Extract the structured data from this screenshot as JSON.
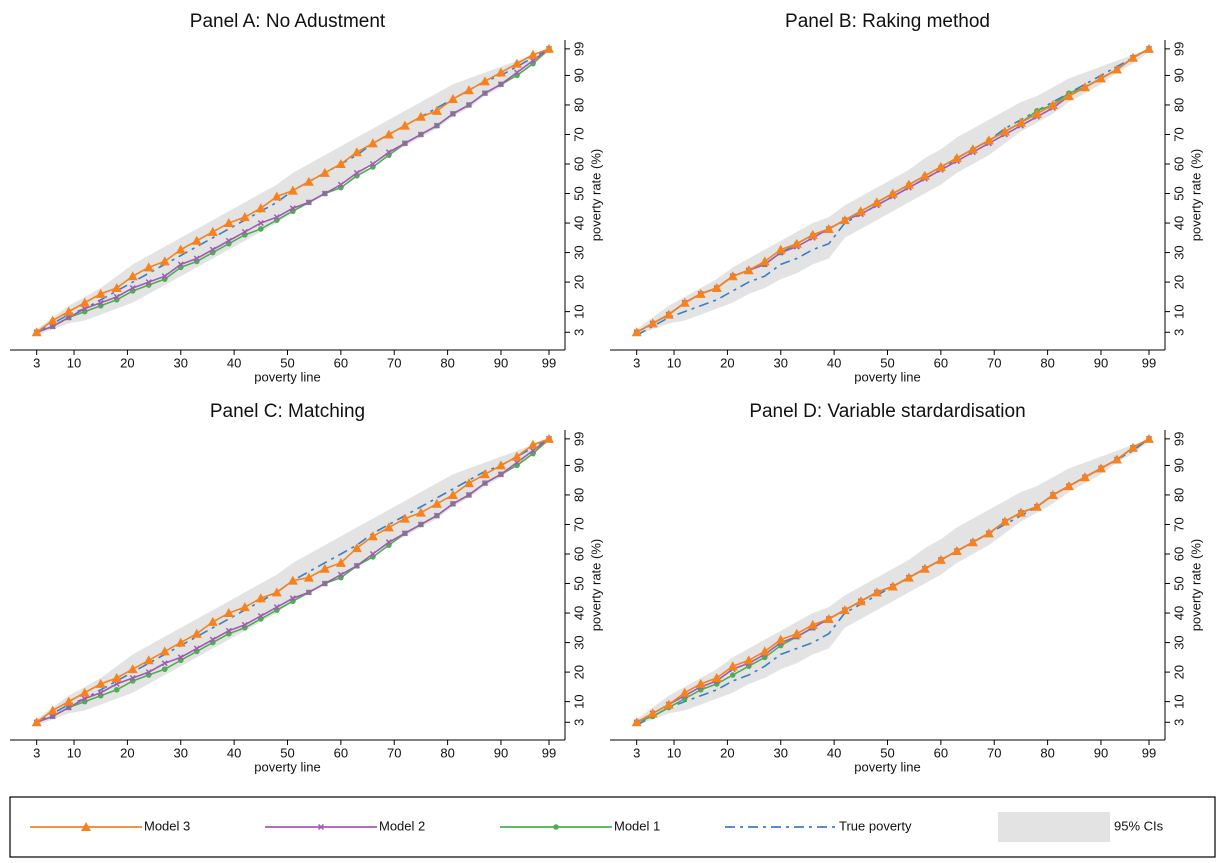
{
  "chart_data": [
    {
      "type": "line",
      "title": "Panel A: No Adustment",
      "xlabel": "poverty line",
      "ylabel": "poverty rate (%)",
      "x": [
        3,
        6,
        9,
        12,
        15,
        18,
        21,
        24,
        27,
        30,
        33,
        36,
        39,
        42,
        45,
        48,
        51,
        54,
        57,
        60,
        63,
        66,
        69,
        72,
        75,
        78,
        81,
        84,
        87,
        90,
        93,
        96,
        99
      ],
      "xlim": [
        -2,
        102
      ],
      "ylim": [
        -3,
        102
      ],
      "xticks": [
        3,
        10,
        20,
        30,
        40,
        50,
        60,
        70,
        80,
        90,
        99
      ],
      "yticks": [
        3,
        10,
        20,
        30,
        40,
        50,
        60,
        70,
        80,
        90,
        99
      ],
      "series": [
        {
          "name": "Model 3",
          "color": "#f5821f",
          "marker": "triangle",
          "values": [
            3,
            7,
            10,
            13,
            16,
            18,
            22,
            25,
            27,
            31,
            34,
            37,
            40,
            42,
            45,
            49,
            51,
            54,
            57,
            60,
            64,
            67,
            70,
            73,
            76,
            78,
            82,
            85,
            88,
            91,
            94,
            97,
            99
          ]
        },
        {
          "name": "Model 2",
          "color": "#a05bb5",
          "marker": "cross",
          "values": [
            3,
            5,
            8,
            11,
            13,
            15,
            18,
            20,
            22,
            26,
            28,
            31,
            34,
            37,
            40,
            42,
            45,
            47,
            50,
            53,
            57,
            60,
            64,
            67,
            70,
            73,
            77,
            80,
            84,
            87,
            91,
            95,
            99
          ]
        },
        {
          "name": "Model 1",
          "color": "#4caf50",
          "marker": "circle",
          "values": [
            3,
            5,
            8,
            10,
            12,
            14,
            17,
            19,
            21,
            25,
            27,
            30,
            33,
            36,
            38,
            41,
            44,
            47,
            50,
            52,
            56,
            59,
            63,
            67,
            70,
            73,
            77,
            80,
            84,
            87,
            90,
            94,
            99
          ]
        },
        {
          "name": "True poverty",
          "color": "#3a7ec6",
          "linestyle": "dashdot",
          "values": [
            3,
            6,
            9,
            11,
            14,
            17,
            20,
            23,
            26,
            29,
            32,
            35,
            38,
            41,
            44,
            47,
            51,
            54,
            57,
            60,
            63,
            67,
            70,
            73,
            76,
            79,
            82,
            85,
            88,
            90,
            93,
            96,
            99
          ]
        }
      ],
      "ci": {
        "name": "95% CIs",
        "color": "#e3e3e3",
        "lower": [
          2,
          4,
          6,
          7,
          9,
          11,
          13,
          16,
          19,
          22,
          25,
          28,
          31,
          34,
          37,
          40,
          44,
          47,
          50,
          53,
          56,
          60,
          63,
          66,
          69,
          72,
          76,
          79,
          83,
          86,
          90,
          94,
          98
        ],
        "upper": [
          4,
          8,
          12,
          15,
          18,
          22,
          26,
          29,
          32,
          35,
          38,
          41,
          44,
          47,
          50,
          53,
          57,
          60,
          63,
          66,
          69,
          72,
          75,
          78,
          81,
          84,
          87,
          89,
          91,
          93,
          95,
          97,
          99
        ]
      }
    },
    {
      "type": "line",
      "title": "Panel B: Raking method",
      "xlabel": "poverty line",
      "ylabel": "poverty rate (%)",
      "x": [
        3,
        6,
        9,
        12,
        15,
        18,
        21,
        24,
        27,
        30,
        33,
        36,
        39,
        42,
        45,
        48,
        51,
        54,
        57,
        60,
        63,
        66,
        69,
        72,
        75,
        78,
        81,
        84,
        87,
        90,
        93,
        96,
        99
      ],
      "xlim": [
        -2,
        102
      ],
      "ylim": [
        -3,
        102
      ],
      "xticks": [
        3,
        10,
        20,
        30,
        40,
        50,
        60,
        70,
        80,
        90,
        99
      ],
      "yticks": [
        3,
        10,
        20,
        30,
        40,
        50,
        60,
        70,
        80,
        90,
        99
      ],
      "series": [
        {
          "name": "Model 3",
          "color": "#f5821f",
          "marker": "triangle",
          "values": [
            3,
            6,
            9,
            13,
            16,
            18,
            22,
            24,
            27,
            31,
            33,
            36,
            38,
            41,
            44,
            47,
            50,
            53,
            56,
            59,
            62,
            65,
            68,
            71,
            74,
            77,
            80,
            83,
            86,
            89,
            92,
            96,
            99
          ]
        },
        {
          "name": "Model 2",
          "color": "#a05bb5",
          "marker": "cross",
          "values": [
            3,
            6,
            9,
            13,
            16,
            18,
            22,
            24,
            26,
            30,
            32,
            35,
            38,
            41,
            43,
            46,
            49,
            52,
            55,
            58,
            61,
            64,
            67,
            70,
            73,
            76,
            79,
            83,
            86,
            89,
            92,
            96,
            99
          ]
        },
        {
          "name": "Model 1",
          "color": "#4caf50",
          "marker": "circle",
          "values": [
            3,
            6,
            9,
            13,
            16,
            18,
            22,
            24,
            26,
            30,
            33,
            36,
            38,
            41,
            44,
            47,
            50,
            53,
            56,
            59,
            62,
            65,
            68,
            71,
            74,
            78,
            80,
            84,
            86,
            89,
            92,
            96,
            99
          ]
        },
        {
          "name": "True poverty",
          "color": "#3a7ec6",
          "linestyle": "dashdot",
          "values": [
            2,
            5,
            8,
            10,
            12,
            14,
            17,
            20,
            22,
            26,
            28,
            31,
            33,
            40,
            43,
            46,
            49,
            52,
            55,
            58,
            62,
            65,
            68,
            72,
            75,
            78,
            81,
            84,
            87,
            90,
            93,
            96,
            99
          ]
        }
      ],
      "ci": {
        "name": "95% CIs",
        "color": "#e3e3e3",
        "lower": [
          2,
          4,
          6,
          7,
          9,
          11,
          13,
          16,
          18,
          21,
          23,
          26,
          28,
          35,
          38,
          41,
          44,
          47,
          50,
          53,
          57,
          60,
          63,
          67,
          71,
          74,
          77,
          81,
          84,
          87,
          91,
          94,
          98
        ],
        "upper": [
          4,
          8,
          12,
          15,
          18,
          21,
          25,
          28,
          31,
          34,
          37,
          40,
          42,
          46,
          49,
          52,
          55,
          58,
          62,
          65,
          69,
          72,
          75,
          78,
          81,
          83,
          86,
          89,
          91,
          93,
          95,
          97,
          99
        ]
      }
    },
    {
      "type": "line",
      "title": "Panel C: Matching",
      "xlabel": "poverty line",
      "ylabel": "poverty rate (%)",
      "x": [
        3,
        6,
        9,
        12,
        15,
        18,
        21,
        24,
        27,
        30,
        33,
        36,
        39,
        42,
        45,
        48,
        51,
        54,
        57,
        60,
        63,
        66,
        69,
        72,
        75,
        78,
        81,
        84,
        87,
        90,
        93,
        96,
        99
      ],
      "xlim": [
        -2,
        102
      ],
      "ylim": [
        -3,
        102
      ],
      "xticks": [
        3,
        10,
        20,
        30,
        40,
        50,
        60,
        70,
        80,
        90,
        99
      ],
      "yticks": [
        3,
        10,
        20,
        30,
        40,
        50,
        60,
        70,
        80,
        90,
        99
      ],
      "series": [
        {
          "name": "Model 3",
          "color": "#f5821f",
          "marker": "triangle",
          "values": [
            3,
            7,
            10,
            13,
            16,
            18,
            21,
            24,
            27,
            30,
            33,
            37,
            40,
            42,
            45,
            47,
            51,
            52,
            55,
            57,
            62,
            66,
            69,
            72,
            74,
            77,
            80,
            84,
            87,
            90,
            93,
            97,
            99
          ]
        },
        {
          "name": "Model 2",
          "color": "#a05bb5",
          "marker": "cross",
          "values": [
            3,
            5,
            8,
            11,
            13,
            16,
            18,
            20,
            23,
            25,
            28,
            31,
            34,
            36,
            39,
            42,
            45,
            47,
            50,
            53,
            56,
            60,
            64,
            67,
            70,
            73,
            77,
            80,
            84,
            87,
            91,
            95,
            99
          ]
        },
        {
          "name": "Model 1",
          "color": "#4caf50",
          "marker": "circle",
          "values": [
            3,
            5,
            8,
            10,
            12,
            14,
            17,
            19,
            21,
            24,
            27,
            30,
            33,
            35,
            38,
            41,
            44,
            47,
            50,
            52,
            56,
            59,
            63,
            67,
            70,
            73,
            77,
            80,
            84,
            87,
            90,
            94,
            99
          ]
        },
        {
          "name": "True poverty",
          "color": "#3a7ec6",
          "linestyle": "dashdot",
          "values": [
            3,
            6,
            9,
            11,
            14,
            17,
            20,
            23,
            26,
            29,
            32,
            35,
            38,
            41,
            44,
            47,
            51,
            54,
            57,
            60,
            63,
            67,
            70,
            73,
            76,
            79,
            82,
            85,
            88,
            90,
            93,
            96,
            99
          ]
        }
      ],
      "ci": {
        "name": "95% CIs",
        "color": "#e3e3e3",
        "lower": [
          2,
          4,
          6,
          7,
          9,
          11,
          13,
          16,
          19,
          22,
          25,
          28,
          31,
          34,
          37,
          40,
          44,
          47,
          50,
          53,
          56,
          60,
          63,
          66,
          69,
          72,
          76,
          79,
          83,
          86,
          90,
          94,
          98
        ],
        "upper": [
          4,
          8,
          12,
          15,
          18,
          22,
          26,
          29,
          32,
          35,
          38,
          41,
          44,
          47,
          50,
          53,
          57,
          60,
          63,
          66,
          69,
          72,
          75,
          78,
          81,
          84,
          87,
          89,
          91,
          93,
          95,
          97,
          99
        ]
      }
    },
    {
      "type": "line",
      "title": "Panel D: Variable stardardisation",
      "xlabel": "poverty line",
      "ylabel": "poverty rate (%)",
      "x": [
        3,
        6,
        9,
        12,
        15,
        18,
        21,
        24,
        27,
        30,
        33,
        36,
        39,
        42,
        45,
        48,
        51,
        54,
        57,
        60,
        63,
        66,
        69,
        72,
        75,
        78,
        81,
        84,
        87,
        90,
        93,
        96,
        99
      ],
      "xlim": [
        -2,
        102
      ],
      "ylim": [
        -3,
        102
      ],
      "xticks": [
        3,
        10,
        20,
        30,
        40,
        50,
        60,
        70,
        80,
        90,
        99
      ],
      "yticks": [
        3,
        10,
        20,
        30,
        40,
        50,
        60,
        70,
        80,
        90,
        99
      ],
      "series": [
        {
          "name": "Model 3",
          "color": "#f5821f",
          "marker": "triangle",
          "values": [
            3,
            6,
            9,
            13,
            16,
            18,
            22,
            24,
            27,
            31,
            33,
            36,
            38,
            41,
            44,
            47,
            49,
            52,
            55,
            58,
            61,
            64,
            67,
            71,
            74,
            76,
            80,
            83,
            86,
            89,
            92,
            96,
            99
          ]
        },
        {
          "name": "Model 2",
          "color": "#a05bb5",
          "marker": "cross",
          "values": [
            3,
            6,
            9,
            12,
            15,
            17,
            21,
            23,
            26,
            30,
            32,
            35,
            38,
            41,
            44,
            47,
            49,
            52,
            55,
            58,
            61,
            64,
            67,
            71,
            74,
            76,
            80,
            83,
            86,
            89,
            92,
            96,
            99
          ]
        },
        {
          "name": "Model 1",
          "color": "#4caf50",
          "marker": "circle",
          "values": [
            3,
            5,
            8,
            11,
            14,
            16,
            19,
            22,
            25,
            29,
            32,
            35,
            38,
            41,
            44,
            47,
            49,
            52,
            55,
            58,
            61,
            64,
            67,
            71,
            74,
            76,
            80,
            83,
            86,
            89,
            92,
            96,
            99
          ]
        },
        {
          "name": "True poverty",
          "color": "#3a7ec6",
          "linestyle": "dashdot",
          "values": [
            2,
            5,
            8,
            10,
            12,
            14,
            17,
            19,
            22,
            26,
            28,
            30,
            33,
            40,
            43,
            46,
            49,
            52,
            55,
            58,
            61,
            64,
            67,
            70,
            73,
            76,
            80,
            83,
            86,
            89,
            92,
            95,
            99
          ]
        }
      ],
      "ci": {
        "name": "95% CIs",
        "color": "#e3e3e3",
        "lower": [
          2,
          4,
          6,
          7,
          9,
          11,
          13,
          16,
          18,
          21,
          23,
          26,
          28,
          35,
          38,
          41,
          44,
          47,
          50,
          53,
          57,
          60,
          63,
          67,
          71,
          74,
          77,
          81,
          84,
          87,
          91,
          94,
          98
        ],
        "upper": [
          4,
          8,
          12,
          15,
          18,
          21,
          25,
          28,
          31,
          34,
          37,
          40,
          42,
          46,
          49,
          52,
          55,
          58,
          62,
          65,
          69,
          72,
          75,
          78,
          81,
          83,
          86,
          89,
          91,
          93,
          95,
          97,
          99
        ]
      }
    }
  ]
}
